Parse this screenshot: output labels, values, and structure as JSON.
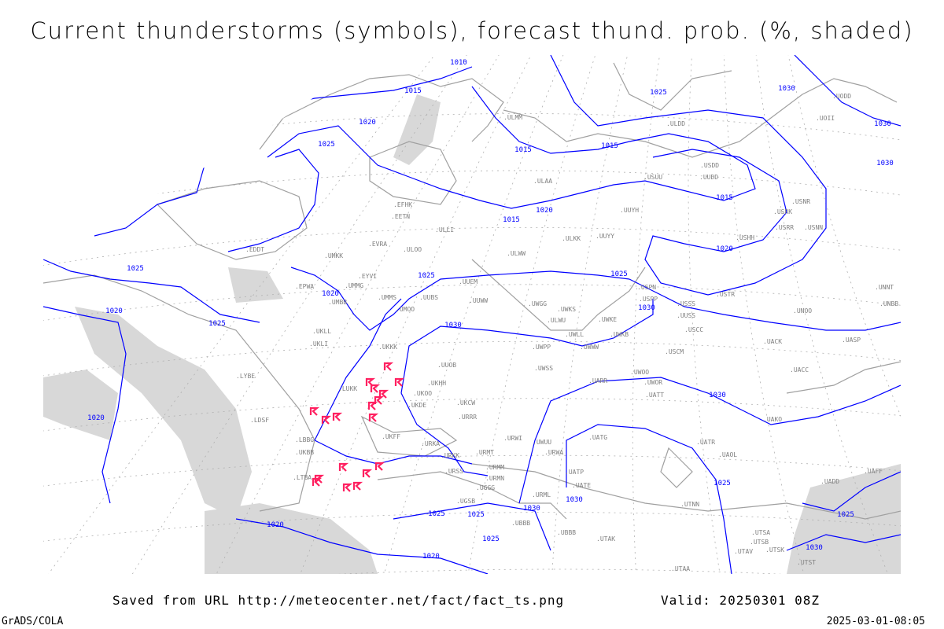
{
  "title": "Current thunderstorms (symbols), forecast thund. prob. (%, shaded)",
  "footer": {
    "saved_from": "Saved from URL http://meteocenter.net/fact/fact_ts.png",
    "valid": "Valid: 20250301 08Z",
    "software": "GrADS/COLA",
    "timestamp": "2025-03-01-08:05"
  },
  "colors": {
    "isobar": "#0000ff",
    "coastline": "#a0a0a0",
    "shading": "#d8d8d8",
    "thunderstorm_symbol": "#ff2060",
    "station_label": "#808080"
  },
  "legend_symbol": "thunderstorm-symbol",
  "isobar_labels": [
    "1010",
    "1015",
    "1020",
    "1025",
    "1015",
    "1025",
    "1030",
    "1030",
    "1030",
    "1015",
    "1015",
    "1020",
    "1015",
    "1020",
    "1025",
    "1020",
    "1025",
    "1020",
    "1025",
    "1025",
    "1030",
    "1030",
    "1030",
    "1020",
    "1025",
    "1030",
    "1025",
    "1025",
    "1030",
    "1020",
    "1025",
    "1025",
    "1020",
    "1030"
  ],
  "stations": [
    "ULMM",
    "ULAA",
    "EFHK",
    "EETN",
    "ULLI",
    "ULOO",
    "EVRA",
    "UMKK",
    "EDDT",
    "EPWA",
    "UMMG",
    "EYVI",
    "UMBB",
    "UMMS",
    "UMOO",
    "UUBS",
    "UUEM",
    "UUWW",
    "UKLL",
    "UKLI",
    "UKKK",
    "UUOB",
    "UKHH",
    "UKOO",
    "UKDE",
    "UKCW",
    "UKFF",
    "URKA",
    "URKK",
    "URSS",
    "UGSB",
    "UGGG",
    "UBBB",
    "URMM",
    "URMN",
    "URMT",
    "URRR",
    "UKBB",
    "LUKK",
    "LYBE",
    "LDSF",
    "LBBG",
    "LTBA",
    "UUYY",
    "ULKK",
    "ULWW",
    "UUDD",
    "UUYH",
    "UUSS",
    "UWKE",
    "UWWW",
    "UWPP",
    "UWSS",
    "UWUU",
    "UWGG",
    "UWKS",
    "UWLL",
    "UWKB",
    "UWOO",
    "UWOR",
    "UATT",
    "UARR",
    "UATG",
    "UATE",
    "UATP",
    "URML",
    "URWA",
    "URWI",
    "UTAK",
    "UBBB",
    "UTNN",
    "UTAA",
    "UAOL",
    "UACC",
    "UAKO",
    "UASP",
    "USCC",
    "USCM",
    "USSS",
    "USPP",
    "USTR",
    "UACK",
    "UNOO",
    "UNNT",
    "UNBB",
    "USRR",
    "USNN",
    "USRK",
    "USNR",
    "USHH",
    "USUU",
    "USDD",
    "UOII",
    "UODD",
    "UADD",
    "UAFF",
    "UATR",
    "UTSA",
    "UTSB",
    "UTAV",
    "UTSK",
    "UTST",
    "ULDD",
    "ULWU",
    "USPN"
  ]
}
